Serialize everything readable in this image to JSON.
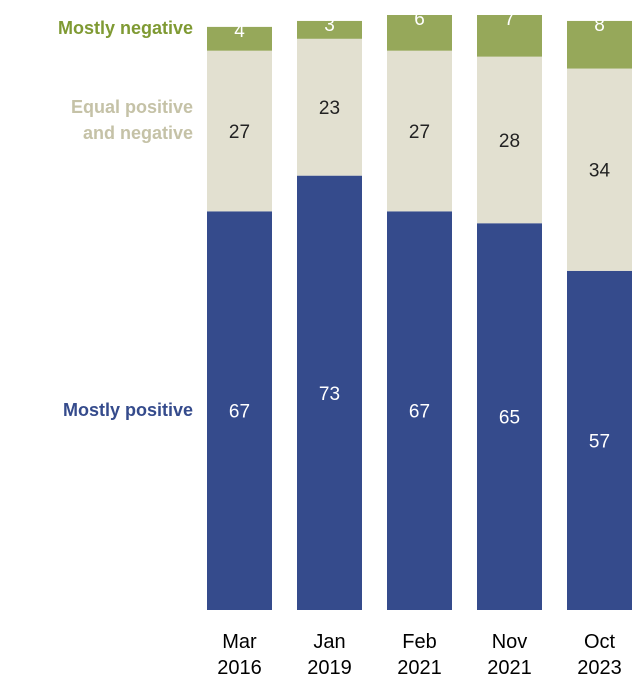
{
  "chart_data": {
    "type": "bar",
    "stacked": true,
    "title": "",
    "xlabel": "",
    "ylabel": "",
    "ylim": [
      0,
      100
    ],
    "grid": false,
    "legend_placement": "left",
    "categories": [
      [
        "Mar",
        "2016"
      ],
      [
        "Jan",
        "2019"
      ],
      [
        "Feb",
        "2021"
      ],
      [
        "Nov",
        "2021"
      ],
      [
        "Oct",
        "2023"
      ]
    ],
    "series": [
      {
        "name": "Mostly positive",
        "legend_lines": [
          "Mostly positive"
        ],
        "color": "#354b8c",
        "label_color": "#ffffff",
        "values": [
          67,
          73,
          67,
          65,
          57
        ]
      },
      {
        "name": "Equal positive and negative",
        "legend_lines": [
          "Equal positive",
          "and negative"
        ],
        "color": "#e2e0d0",
        "label_color": "#222222",
        "values": [
          27,
          23,
          27,
          28,
          34
        ]
      },
      {
        "name": "Mostly negative",
        "legend_lines": [
          "Mostly negative"
        ],
        "color": "#96a85a",
        "label_color": "#ffffff",
        "values": [
          4,
          3,
          6,
          7,
          8
        ]
      }
    ],
    "legend_colors": [
      "#354b8c",
      "#c5c2a7",
      "#7f9a33"
    ]
  }
}
